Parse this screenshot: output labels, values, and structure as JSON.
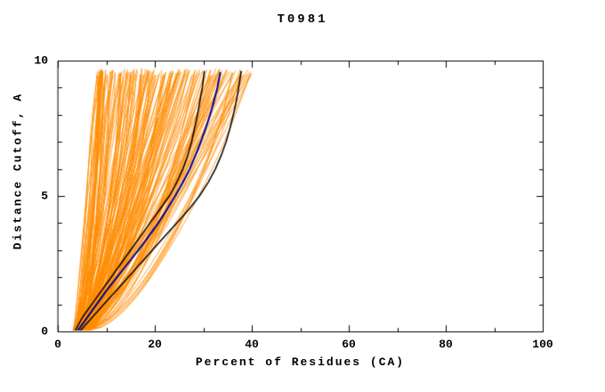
{
  "chart_data": {
    "type": "line",
    "title": "T0981",
    "xlabel": "Percent of Residues (CA)",
    "ylabel": "Distance Cutoff, A",
    "xlim": [
      0,
      100
    ],
    "ylim": [
      0,
      10
    ],
    "x_ticks": [
      0,
      20,
      40,
      60,
      80,
      100
    ],
    "x_minor_step": 10,
    "y_ticks": [
      0,
      5,
      10
    ],
    "y_minor_step": 1,
    "grid": false,
    "legend": "none",
    "colors": {
      "ensemble": "#ff8c00",
      "highlight": "#000000",
      "best": "#00008b",
      "axis": "#000000",
      "background": "#ffffff"
    },
    "series": [
      {
        "name": "black-curve-left",
        "color": "#000000",
        "width": 1.5,
        "points": [
          [
            3.5,
            0
          ],
          [
            5,
            0.5
          ],
          [
            7,
            1
          ],
          [
            9,
            1.5
          ],
          [
            11,
            2
          ],
          [
            13,
            2.5
          ],
          [
            15,
            3
          ],
          [
            17,
            3.5
          ],
          [
            19,
            4
          ],
          [
            21,
            4.5
          ],
          [
            23,
            5
          ],
          [
            24.5,
            5.5
          ],
          [
            25.8,
            6
          ],
          [
            26.8,
            6.5
          ],
          [
            27.6,
            7
          ],
          [
            28.2,
            7.5
          ],
          [
            28.8,
            8
          ],
          [
            29.3,
            8.5
          ],
          [
            29.8,
            9
          ],
          [
            30.2,
            9.6
          ]
        ]
      },
      {
        "name": "black-curve-right",
        "color": "#000000",
        "width": 1.5,
        "points": [
          [
            4.5,
            0
          ],
          [
            7,
            0.5
          ],
          [
            9.5,
            1
          ],
          [
            12,
            1.5
          ],
          [
            14.5,
            2
          ],
          [
            17,
            2.5
          ],
          [
            19.5,
            3
          ],
          [
            22,
            3.5
          ],
          [
            24.5,
            4
          ],
          [
            27,
            4.5
          ],
          [
            29.2,
            5
          ],
          [
            31,
            5.5
          ],
          [
            32.5,
            6
          ],
          [
            33.7,
            6.5
          ],
          [
            34.7,
            7
          ],
          [
            35.5,
            7.5
          ],
          [
            36.2,
            8
          ],
          [
            36.8,
            8.5
          ],
          [
            37.3,
            9
          ],
          [
            37.8,
            9.6
          ]
        ]
      },
      {
        "name": "blue-curve",
        "color": "#00008b",
        "width": 2,
        "points": [
          [
            4,
            0
          ],
          [
            6,
            0.5
          ],
          [
            8,
            1
          ],
          [
            10,
            1.5
          ],
          [
            12.2,
            2
          ],
          [
            14.4,
            2.5
          ],
          [
            16.6,
            3
          ],
          [
            18.7,
            3.5
          ],
          [
            20.7,
            4
          ],
          [
            22.5,
            4.5
          ],
          [
            24.2,
            5
          ],
          [
            25.8,
            5.5
          ],
          [
            27.2,
            6
          ],
          [
            28.4,
            6.5
          ],
          [
            29.5,
            7
          ],
          [
            30.5,
            7.5
          ],
          [
            31.4,
            8
          ],
          [
            32.2,
            8.5
          ],
          [
            32.9,
            9
          ],
          [
            33.5,
            9.55
          ]
        ]
      }
    ],
    "ensemble": {
      "name": "all-models",
      "color": "#ff8c00",
      "count": 170,
      "seed": 42,
      "x_start_range": [
        3,
        6
      ],
      "x_top_range": [
        8,
        40
      ],
      "exponent_range": [
        0.5,
        0.95
      ],
      "y_top_range": [
        9.4,
        9.7
      ],
      "line_width": 0.8
    }
  }
}
